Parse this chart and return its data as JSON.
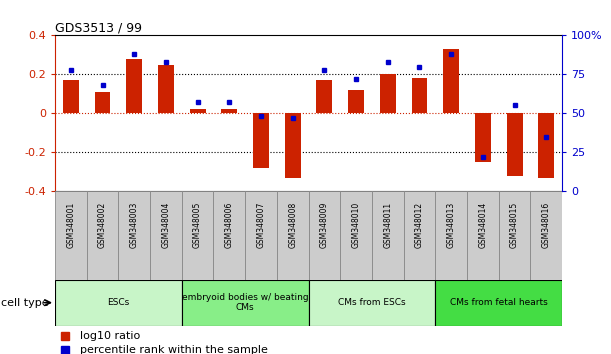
{
  "title": "GDS3513 / 99",
  "samples": [
    "GSM348001",
    "GSM348002",
    "GSM348003",
    "GSM348004",
    "GSM348005",
    "GSM348006",
    "GSM348007",
    "GSM348008",
    "GSM348009",
    "GSM348010",
    "GSM348011",
    "GSM348012",
    "GSM348013",
    "GSM348014",
    "GSM348015",
    "GSM348016"
  ],
  "log10_ratio": [
    0.17,
    0.11,
    0.28,
    0.25,
    0.02,
    0.02,
    -0.28,
    -0.33,
    0.17,
    0.12,
    0.2,
    0.18,
    0.33,
    -0.25,
    -0.32,
    -0.33
  ],
  "percentile_rank": [
    78,
    68,
    88,
    83,
    57,
    57,
    48,
    47,
    78,
    72,
    83,
    80,
    88,
    22,
    55,
    35
  ],
  "cell_types": [
    {
      "label": "ESCs",
      "start": 0,
      "end": 4,
      "color": "#c8f5c8"
    },
    {
      "label": "embryoid bodies w/ beating\nCMs",
      "start": 4,
      "end": 8,
      "color": "#88ee88"
    },
    {
      "label": "CMs from ESCs",
      "start": 8,
      "end": 12,
      "color": "#c8f5c8"
    },
    {
      "label": "CMs from fetal hearts",
      "start": 12,
      "end": 16,
      "color": "#44dd44"
    }
  ],
  "bar_color": "#cc2200",
  "dot_color": "#0000cc",
  "ylim_left": [
    -0.4,
    0.4
  ],
  "ylim_right": [
    0,
    100
  ],
  "yticks_left": [
    -0.4,
    -0.2,
    0.0,
    0.2,
    0.4
  ],
  "yticks_right": [
    0,
    25,
    50,
    75,
    100
  ],
  "ytick_labels_right": [
    "0",
    "25",
    "50",
    "75",
    "100%"
  ],
  "background_color": "#ffffff",
  "cell_type_label": "cell type",
  "legend_label_bar": "log10 ratio",
  "legend_label_dot": "percentile rank within the sample",
  "sample_box_color": "#cccccc",
  "sample_box_edge": "#888888"
}
